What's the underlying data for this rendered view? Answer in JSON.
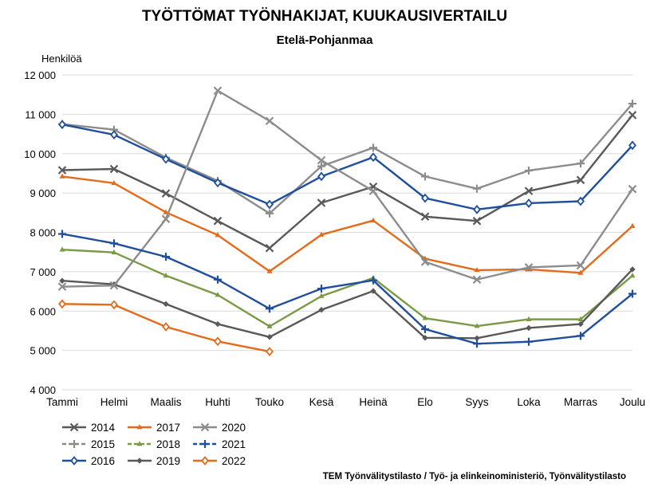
{
  "chart_data": {
    "type": "line",
    "title": "TYÖTTÖMAT TYÖNHAKIJAT, KUUKAUSIVERTAILU",
    "subtitle": "Etelä-Pohjanmaa",
    "ylabel": "Henkilöä",
    "xlabel": "",
    "categories": [
      "Tammi",
      "Helmi",
      "Maalis",
      "Huhti",
      "Touko",
      "Kesä",
      "Heinä",
      "Elo",
      "Syys",
      "Loka",
      "Marras",
      "Joulu"
    ],
    "ylim": [
      4000,
      12000
    ],
    "yticks": [
      4000,
      5000,
      6000,
      7000,
      8000,
      9000,
      10000,
      11000,
      12000
    ],
    "ytick_labels": [
      "4 000",
      "5 000",
      "6 000",
      "7 000",
      "8 000",
      "9 000",
      "10 000",
      "11 000",
      "12 000"
    ],
    "grid": "horizontal",
    "legend_position": "bottom-left",
    "source": "TEM Työnvälitystilasto / Työ- ja elinkeinoministeriö, Työnvälitystilasto",
    "series": [
      {
        "name": "2014",
        "color": "#595959",
        "dash": "solid",
        "marker": "x",
        "values": [
          9580,
          9610,
          8990,
          8290,
          7600,
          8750,
          9160,
          8400,
          8290,
          9050,
          9330,
          10980
        ]
      },
      {
        "name": "2015",
        "color": "#8c8c8c",
        "dash": "solid",
        "marker": "plus",
        "values": [
          10750,
          10610,
          9900,
          9310,
          8480,
          9680,
          10150,
          9420,
          9110,
          9570,
          9750,
          11270
        ]
      },
      {
        "name": "2016",
        "color": "#1f4e9c",
        "dash": "solid",
        "marker": "diamond",
        "values": [
          10740,
          10480,
          9860,
          9260,
          8710,
          9420,
          9910,
          8870,
          8580,
          8740,
          8790,
          10210
        ]
      },
      {
        "name": "2017",
        "color": "#e36c1c",
        "dash": "solid",
        "marker": "triangle",
        "values": [
          9420,
          9250,
          8510,
          7930,
          7010,
          7940,
          8300,
          7330,
          7040,
          7060,
          6970,
          8160
        ]
      },
      {
        "name": "2018",
        "color": "#7a9a44",
        "dash": "solid",
        "marker": "triangle",
        "values": [
          7560,
          7490,
          6900,
          6410,
          5610,
          6380,
          6840,
          5820,
          5620,
          5790,
          5790,
          6900
        ]
      },
      {
        "name": "2019",
        "color": "#595959",
        "dash": "solid",
        "marker": "diamond-small",
        "values": [
          6770,
          6680,
          6180,
          5670,
          5340,
          6030,
          6510,
          5320,
          5310,
          5570,
          5670,
          7060
        ]
      },
      {
        "name": "2020",
        "color": "#8c8c8c",
        "dash": "solid",
        "marker": "x",
        "values": [
          6620,
          6650,
          8340,
          11600,
          10830,
          9830,
          9050,
          7250,
          6800,
          7110,
          7160,
          9100
        ]
      },
      {
        "name": "2021",
        "color": "#1f4e9c",
        "dash": "solid",
        "marker": "plus",
        "values": [
          7960,
          7720,
          7380,
          6800,
          6060,
          6570,
          6780,
          5540,
          5170,
          5220,
          5370,
          6440
        ]
      },
      {
        "name": "2022",
        "color": "#e36c1c",
        "dash": "solid",
        "marker": "diamond",
        "values": [
          6180,
          6160,
          5600,
          5230,
          4970,
          null,
          null,
          null,
          null,
          null,
          null,
          null
        ]
      }
    ],
    "legend_dash": [
      "solid",
      "dash",
      "solid",
      "solid",
      "dash",
      "solid",
      "solid",
      "dash",
      "solid"
    ]
  }
}
